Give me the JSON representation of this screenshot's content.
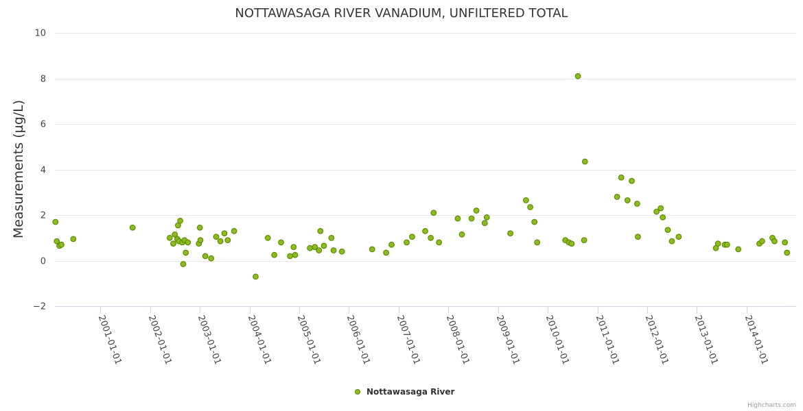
{
  "chart_data": {
    "type": "scatter",
    "title": "NOTTAWASAGA RIVER VANADIUM, UNFILTERED TOTAL",
    "xlabel": "",
    "ylabel": "Measurements (µg/L)",
    "ylim": [
      -2,
      10
    ],
    "y_ticks": [
      -2,
      0,
      2,
      4,
      6,
      8,
      10
    ],
    "x_range": [
      "2000-02-01",
      "2014-12-31"
    ],
    "x_ticks": [
      "2001-01-01",
      "2002-01-01",
      "2003-01-01",
      "2004-01-01",
      "2005-01-01",
      "2006-01-01",
      "2007-01-01",
      "2008-01-01",
      "2009-01-01",
      "2010-01-01",
      "2011-01-01",
      "2012-01-01",
      "2013-01-01",
      "2014-01-01"
    ],
    "legend": "bottom-center",
    "grid": true,
    "series": [
      {
        "name": "Nottawasaga River",
        "color": "#8bbc21",
        "border_color": "#5c8a00",
        "points": [
          [
            "2000-02-05",
            1.7
          ],
          [
            "2000-02-15",
            0.85
          ],
          [
            "2000-03-05",
            0.65
          ],
          [
            "2000-03-20",
            0.7
          ],
          [
            "2000-06-15",
            0.95
          ],
          [
            "2001-08-25",
            1.45
          ],
          [
            "2002-05-25",
            1.0
          ],
          [
            "2002-06-20",
            0.75
          ],
          [
            "2002-07-01",
            1.15
          ],
          [
            "2002-07-20",
            0.95
          ],
          [
            "2002-07-25",
            1.55
          ],
          [
            "2002-08-01",
            0.85
          ],
          [
            "2002-08-10",
            1.75
          ],
          [
            "2002-08-25",
            0.8
          ],
          [
            "2002-09-01",
            -0.15
          ],
          [
            "2002-09-10",
            0.9
          ],
          [
            "2002-09-20",
            0.35
          ],
          [
            "2002-10-05",
            0.8
          ],
          [
            "2002-12-25",
            0.75
          ],
          [
            "2003-01-01",
            1.45
          ],
          [
            "2003-01-05",
            0.9
          ],
          [
            "2003-02-10",
            0.2
          ],
          [
            "2003-03-25",
            0.1
          ],
          [
            "2003-05-01",
            1.05
          ],
          [
            "2003-06-01",
            0.85
          ],
          [
            "2003-07-01",
            1.2
          ],
          [
            "2003-07-25",
            0.9
          ],
          [
            "2003-09-10",
            1.3
          ],
          [
            "2004-02-15",
            -0.7
          ],
          [
            "2004-05-15",
            1.0
          ],
          [
            "2004-07-01",
            0.25
          ],
          [
            "2004-08-20",
            0.8
          ],
          [
            "2004-10-25",
            0.2
          ],
          [
            "2004-11-20",
            0.6
          ],
          [
            "2004-12-01",
            0.25
          ],
          [
            "2005-03-20",
            0.55
          ],
          [
            "2005-04-25",
            0.6
          ],
          [
            "2005-05-25",
            0.45
          ],
          [
            "2005-06-05",
            1.3
          ],
          [
            "2005-07-01",
            0.65
          ],
          [
            "2005-09-10",
            0.45
          ],
          [
            "2005-08-25",
            1.0
          ],
          [
            "2005-11-10",
            0.4
          ],
          [
            "2006-06-20",
            0.5
          ],
          [
            "2006-10-01",
            0.35
          ],
          [
            "2006-11-10",
            0.7
          ],
          [
            "2007-03-01",
            0.8
          ],
          [
            "2007-04-10",
            1.05
          ],
          [
            "2007-07-15",
            1.3
          ],
          [
            "2007-08-25",
            1.0
          ],
          [
            "2007-09-15",
            2.1
          ],
          [
            "2007-10-25",
            0.8
          ],
          [
            "2008-03-10",
            1.85
          ],
          [
            "2008-04-10",
            1.15
          ],
          [
            "2008-06-20",
            1.85
          ],
          [
            "2008-07-25",
            2.2
          ],
          [
            "2008-09-25",
            1.65
          ],
          [
            "2008-10-10",
            1.9
          ],
          [
            "2009-04-01",
            1.2
          ],
          [
            "2009-07-25",
            2.65
          ],
          [
            "2009-08-25",
            2.35
          ],
          [
            "2009-09-25",
            1.7
          ],
          [
            "2009-10-15",
            0.8
          ],
          [
            "2010-05-10",
            0.9
          ],
          [
            "2010-06-05",
            0.8
          ],
          [
            "2010-06-25",
            0.75
          ],
          [
            "2010-08-10",
            8.1
          ],
          [
            "2010-09-25",
            0.9
          ],
          [
            "2010-10-01",
            4.35
          ],
          [
            "2011-05-25",
            2.8
          ],
          [
            "2011-06-25",
            3.65
          ],
          [
            "2011-08-10",
            2.65
          ],
          [
            "2011-09-10",
            3.5
          ],
          [
            "2011-10-20",
            2.5
          ],
          [
            "2011-10-25",
            1.05
          ],
          [
            "2012-03-10",
            2.15
          ],
          [
            "2012-04-10",
            2.3
          ],
          [
            "2012-04-25",
            1.9
          ],
          [
            "2012-06-01",
            1.35
          ],
          [
            "2012-07-01",
            0.85
          ],
          [
            "2012-08-20",
            1.05
          ],
          [
            "2013-05-20",
            0.55
          ],
          [
            "2013-06-05",
            0.75
          ],
          [
            "2013-07-25",
            0.7
          ],
          [
            "2013-08-10",
            0.7
          ],
          [
            "2013-11-01",
            0.5
          ],
          [
            "2014-04-05",
            0.75
          ],
          [
            "2014-04-25",
            0.85
          ],
          [
            "2014-07-10",
            1.0
          ],
          [
            "2014-07-25",
            0.85
          ],
          [
            "2014-10-10",
            0.8
          ],
          [
            "2014-10-25",
            0.35
          ]
        ]
      }
    ]
  },
  "credit": "Highcharts.com"
}
